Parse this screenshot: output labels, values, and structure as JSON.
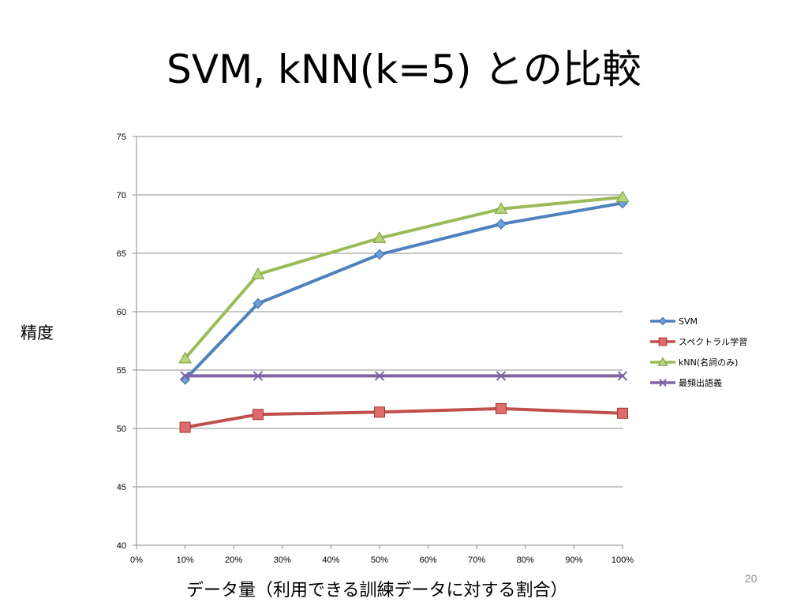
{
  "slide": {
    "title": "SVM, kNN(k=5) との比較",
    "number": "20"
  },
  "chart_data": {
    "type": "line",
    "xlabel": "データ量（利用できる訓練データに対する割合）",
    "ylabel": "精度",
    "x": [
      10,
      25,
      50,
      75,
      100
    ],
    "xlim": [
      0,
      100
    ],
    "ylim": [
      40,
      75
    ],
    "x_ticks": [
      "0%",
      "10%",
      "20%",
      "30%",
      "40%",
      "50%",
      "60%",
      "70%",
      "80%",
      "90%",
      "100%"
    ],
    "y_ticks": [
      "40",
      "45",
      "50",
      "55",
      "60",
      "65",
      "70",
      "75"
    ],
    "grid": true,
    "legend_position": "right",
    "series": [
      {
        "name": "SVM",
        "values": [
          54.2,
          60.7,
          64.9,
          67.5,
          69.3
        ],
        "color": "#4f81bd",
        "marker": "diamond"
      },
      {
        "name": "スペクトラル学習",
        "values": [
          50.1,
          51.2,
          51.4,
          51.7,
          51.3
        ],
        "color": "#c0504d",
        "marker": "square"
      },
      {
        "name": "kNN(名詞のみ)",
        "values": [
          56.0,
          63.2,
          66.3,
          68.8,
          69.8
        ],
        "color": "#9bbb59",
        "marker": "triangle"
      },
      {
        "name": "最頻出語義",
        "values": [
          54.5,
          54.5,
          54.5,
          54.5,
          54.5
        ],
        "color": "#8064a2",
        "marker": "x"
      }
    ]
  }
}
